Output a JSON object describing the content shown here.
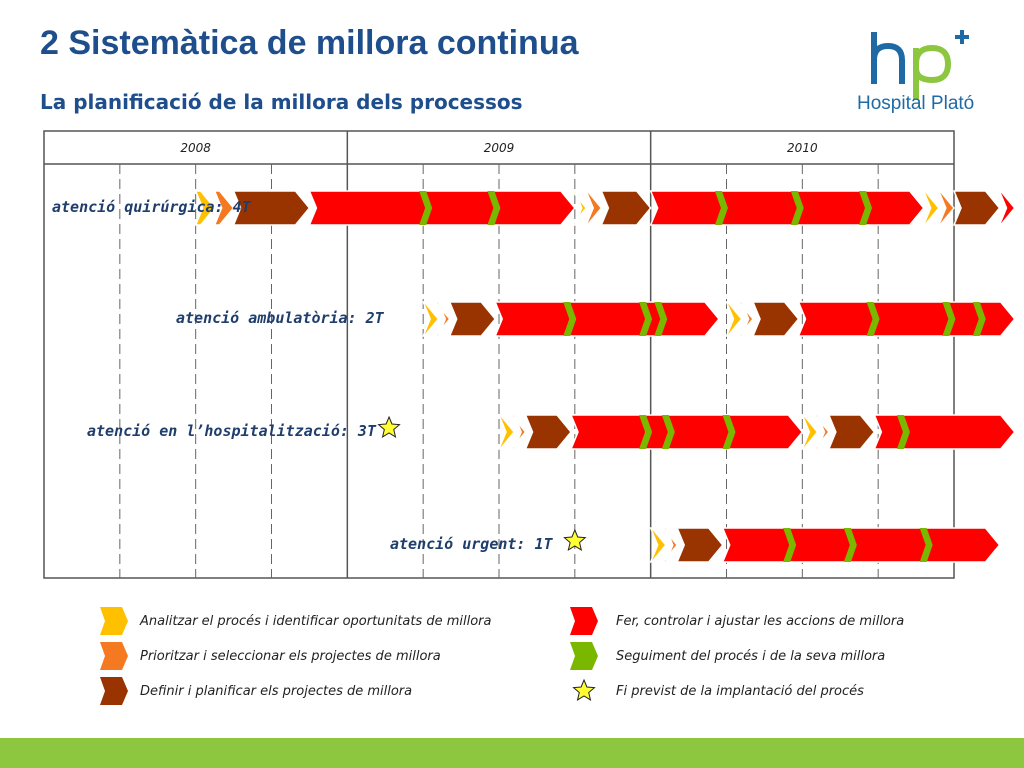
{
  "slide": {
    "title": "2 Sistemàtica de millora continua",
    "subtitle": "La planificació de la millora dels processos",
    "logo_text": "Hospital Plató"
  },
  "timeline": {
    "years": [
      "2008",
      "2009",
      "2010"
    ],
    "rows": [
      {
        "label": "atenció quirúrgica: 4T",
        "segments": [
          {
            "phase": "analitzar",
            "start": 2.0,
            "end": 2.25
          },
          {
            "phase": "prioritzar",
            "start": 2.25,
            "end": 2.5
          },
          {
            "phase": "definir",
            "start": 2.5,
            "end": 3.5
          },
          {
            "phase": "fer",
            "start": 3.5,
            "end": 7.0
          },
          {
            "phase": "analitzar",
            "start": 7.0,
            "end": 7.15
          },
          {
            "phase": "prioritzar",
            "start": 7.15,
            "end": 7.35
          },
          {
            "phase": "definir",
            "start": 7.35,
            "end": 8.0
          },
          {
            "phase": "fer",
            "start": 8.0,
            "end": 11.6
          },
          {
            "phase": "analitzar",
            "start": 11.6,
            "end": 11.8
          },
          {
            "phase": "prioritzar",
            "start": 11.8,
            "end": 12.0
          },
          {
            "phase": "definir",
            "start": 12.0,
            "end": 12.6
          },
          {
            "phase": "fer",
            "start": 12.6,
            "end": 12.8
          }
        ],
        "checks": [
          5.0,
          5.9,
          8.9,
          9.9,
          10.8
        ],
        "star": null
      },
      {
        "label": "atenció ambulatòria: 2T",
        "segments": [
          {
            "phase": "analitzar",
            "start": 5.0,
            "end": 5.2
          },
          {
            "phase": "prioritzar",
            "start": 5.2,
            "end": 5.35
          },
          {
            "phase": "definir",
            "start": 5.35,
            "end": 5.95
          },
          {
            "phase": "fer",
            "start": 5.95,
            "end": 8.9
          },
          {
            "phase": "analitzar",
            "start": 9.0,
            "end": 9.2
          },
          {
            "phase": "prioritzar",
            "start": 9.2,
            "end": 9.35
          },
          {
            "phase": "definir",
            "start": 9.35,
            "end": 9.95
          },
          {
            "phase": "fer",
            "start": 9.95,
            "end": 12.8
          }
        ],
        "checks": [
          6.9,
          7.9,
          8.1,
          10.9,
          11.9,
          12.3
        ],
        "star": null
      },
      {
        "label": "atenció en l’hospitalització: 3T",
        "segments": [
          {
            "phase": "analitzar",
            "start": 6.0,
            "end": 6.2
          },
          {
            "phase": "prioritzar",
            "start": 6.2,
            "end": 6.35
          },
          {
            "phase": "definir",
            "start": 6.35,
            "end": 6.95
          },
          {
            "phase": "fer",
            "start": 6.95,
            "end": 10.0
          },
          {
            "phase": "analitzar",
            "start": 10.0,
            "end": 10.2
          },
          {
            "phase": "prioritzar",
            "start": 10.2,
            "end": 10.35
          },
          {
            "phase": "definir",
            "start": 10.35,
            "end": 10.95
          },
          {
            "phase": "fer",
            "start": 10.95,
            "end": 12.8
          }
        ],
        "checks": [
          7.9,
          8.2,
          9.0,
          11.3
        ],
        "star": 4.55
      },
      {
        "label": "atenció urgent: 1T",
        "segments": [
          {
            "phase": "analitzar",
            "start": 8.0,
            "end": 8.2
          },
          {
            "phase": "prioritzar",
            "start": 8.2,
            "end": 8.35
          },
          {
            "phase": "definir",
            "start": 8.35,
            "end": 8.95
          },
          {
            "phase": "fer",
            "start": 8.95,
            "end": 12.6
          }
        ],
        "checks": [
          9.8,
          10.6,
          11.6
        ],
        "star": 7.0
      }
    ]
  },
  "legend": [
    {
      "phase": "analitzar",
      "label": "Analitzar el procés i identificar oportunitats de millora"
    },
    {
      "phase": "prioritzar",
      "label": "Prioritzar i seleccionar els projectes de millora"
    },
    {
      "phase": "definir",
      "label": "Definir i planificar els projectes de millora"
    },
    {
      "phase": "fer",
      "label": "Fer, controlar i ajustar les accions de millora"
    },
    {
      "phase": "seguiment",
      "label": "Seguiment del procés i de la seva millora"
    },
    {
      "phase": "fi",
      "label": "Fi previst de la implantació del procés"
    }
  ],
  "colors": {
    "analitzar": "#ffc000",
    "prioritzar": "#f47920",
    "definir": "#993300",
    "fer": "#ff0000",
    "seguiment": "#7ab800",
    "fi": "#ffff33",
    "title": "#1f4e8c",
    "band": "#8dc63f"
  }
}
